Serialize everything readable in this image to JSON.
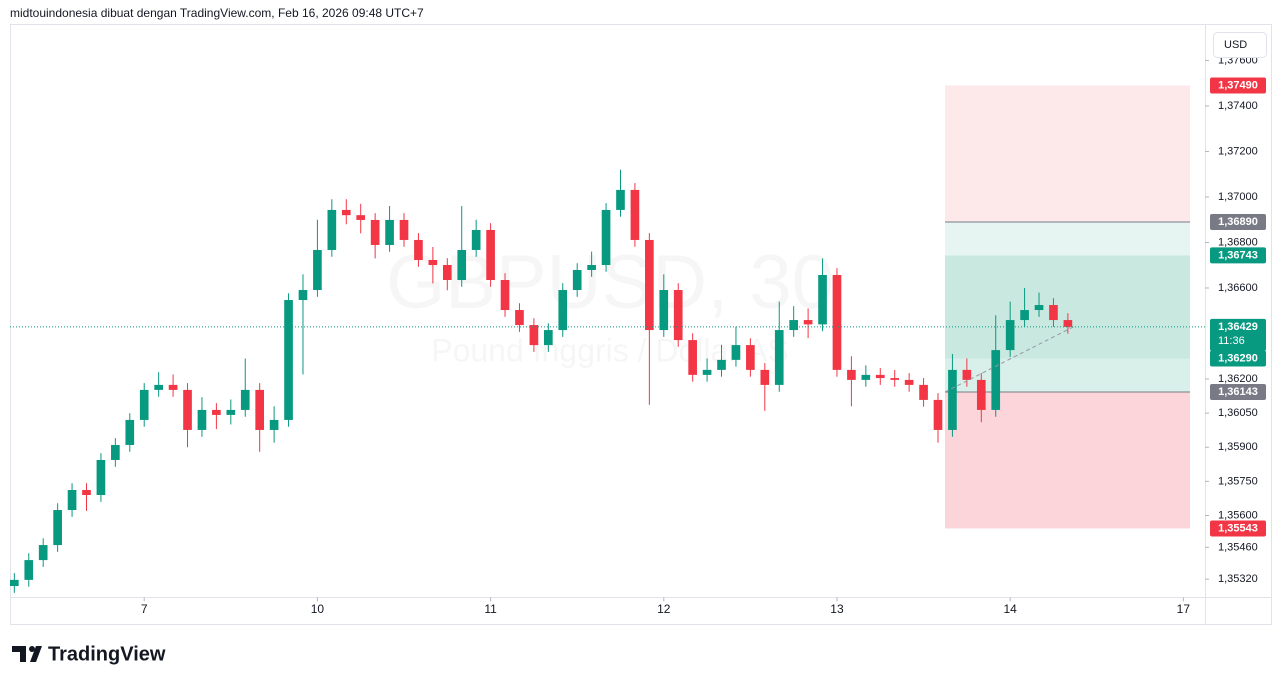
{
  "header": {
    "attribution": "midtouindonesia dibuat dengan TradingView.com, Feb 16, 2026 09:48 UTC+7"
  },
  "footer": {
    "logo": "TradingView"
  },
  "chart_data": {
    "type": "candlestick",
    "title": "GBPUSD, 30",
    "subtitle": "Pound Inggris / Dollar AS",
    "currency": "USD",
    "countdown": "11:36",
    "up_color": "#089981",
    "down_color": "#f23645",
    "grid": false,
    "open": [
      1.3529,
      1.35317,
      1.35404,
      1.3547,
      1.35624,
      1.35712,
      1.3569,
      1.35844,
      1.3591,
      1.3602,
      1.36152,
      1.36174,
      1.36152,
      1.35976,
      1.36064,
      1.36042,
      1.36064,
      1.36152,
      1.35976,
      1.3602,
      1.36547,
      1.36591,
      1.36767,
      1.36943,
      1.3692,
      1.36899,
      1.36789,
      1.36899,
      1.36811,
      1.36723,
      1.36701,
      1.36635,
      1.36767,
      1.36855,
      1.36635,
      1.36503,
      1.36437,
      1.36349,
      1.36415,
      1.36591,
      1.36679,
      1.36701,
      1.36943,
      1.37031,
      1.36811,
      1.36415,
      1.36591,
      1.36371,
      1.36218,
      1.3624,
      1.36284,
      1.36349,
      1.3624,
      1.36174,
      1.36415,
      1.36459,
      1.3644,
      1.36657,
      1.3624,
      1.36196,
      1.36218,
      1.36204,
      1.36196,
      1.36174,
      1.36108,
      1.35976,
      1.3624,
      1.36196,
      1.36064,
      1.36327,
      1.36459,
      1.36503,
      1.36525,
      1.36459
    ],
    "high": [
      1.35347,
      1.35434,
      1.355,
      1.35654,
      1.35742,
      1.35742,
      1.35874,
      1.3594,
      1.3605,
      1.36182,
      1.3623,
      1.3622,
      1.36182,
      1.3612,
      1.36094,
      1.3611,
      1.3629,
      1.36182,
      1.3608,
      1.36577,
      1.3666,
      1.369,
      1.3699,
      1.3699,
      1.3697,
      1.36929,
      1.3696,
      1.36929,
      1.36841,
      1.3678,
      1.36731,
      1.3696,
      1.369,
      1.36885,
      1.36665,
      1.36533,
      1.36467,
      1.36445,
      1.36621,
      1.36709,
      1.3676,
      1.36973,
      1.3712,
      1.37061,
      1.36841,
      1.3666,
      1.36621,
      1.36401,
      1.3629,
      1.3635,
      1.3643,
      1.36379,
      1.3627,
      1.3654,
      1.3652,
      1.3651,
      1.3673,
      1.36687,
      1.363,
      1.3626,
      1.36248,
      1.3624,
      1.36226,
      1.36204,
      1.36138,
      1.3631,
      1.3629,
      1.36226,
      1.3648,
      1.3654,
      1.366,
      1.3658,
      1.36555,
      1.36489
    ],
    "low": [
      1.3526,
      1.35287,
      1.35374,
      1.3544,
      1.35594,
      1.3562,
      1.3566,
      1.35814,
      1.3588,
      1.3599,
      1.36122,
      1.36122,
      1.359,
      1.35946,
      1.3598,
      1.36,
      1.36034,
      1.3588,
      1.3592,
      1.3599,
      1.3622,
      1.36561,
      1.36737,
      1.3688,
      1.3684,
      1.3673,
      1.36759,
      1.36781,
      1.36693,
      1.3662,
      1.3659,
      1.36605,
      1.36737,
      1.36605,
      1.36473,
      1.36407,
      1.36319,
      1.36319,
      1.36385,
      1.36561,
      1.36649,
      1.36671,
      1.36913,
      1.36781,
      1.36086,
      1.36385,
      1.36341,
      1.36188,
      1.36188,
      1.3621,
      1.36254,
      1.3621,
      1.3606,
      1.36144,
      1.36385,
      1.3638,
      1.3641,
      1.3621,
      1.3608,
      1.36166,
      1.36174,
      1.36166,
      1.36144,
      1.36078,
      1.3592,
      1.35946,
      1.36166,
      1.3601,
      1.36034,
      1.36297,
      1.36429,
      1.36473,
      1.36429,
      1.36399
    ],
    "close": [
      1.35317,
      1.35404,
      1.3547,
      1.35624,
      1.35712,
      1.3569,
      1.35844,
      1.3591,
      1.3602,
      1.36152,
      1.36174,
      1.36152,
      1.35976,
      1.36064,
      1.36042,
      1.36064,
      1.36152,
      1.35976,
      1.3602,
      1.36547,
      1.36591,
      1.36767,
      1.36943,
      1.3692,
      1.36899,
      1.36789,
      1.36899,
      1.36811,
      1.36723,
      1.36701,
      1.36635,
      1.36767,
      1.36855,
      1.36635,
      1.36503,
      1.36437,
      1.36349,
      1.36415,
      1.36591,
      1.36679,
      1.36701,
      1.36943,
      1.37031,
      1.36811,
      1.36415,
      1.36591,
      1.36371,
      1.36218,
      1.3624,
      1.36284,
      1.36349,
      1.3624,
      1.36174,
      1.36415,
      1.36459,
      1.3644,
      1.36657,
      1.3624,
      1.36196,
      1.36218,
      1.36204,
      1.36196,
      1.36174,
      1.36108,
      1.35976,
      1.3624,
      1.36196,
      1.36064,
      1.36327,
      1.36459,
      1.36503,
      1.36525,
      1.36459,
      1.36429
    ],
    "xlim": [
      -0.3,
      82.5
    ],
    "xticks": [
      {
        "value": 9,
        "label": "7"
      },
      {
        "value": 21,
        "label": "10"
      },
      {
        "value": 33,
        "label": "11"
      },
      {
        "value": 45,
        "label": "12"
      },
      {
        "value": 57,
        "label": "13"
      },
      {
        "value": 69,
        "label": "14"
      },
      {
        "value": 81,
        "label": "17"
      }
    ],
    "ylim": [
      1.3524,
      1.3774
    ],
    "yticks": [
      {
        "value": 1.376,
        "label": "1,37600"
      },
      {
        "value": 1.374,
        "label": "1,37400"
      },
      {
        "value": 1.372,
        "label": "1,37200"
      },
      {
        "value": 1.37,
        "label": "1,37000"
      },
      {
        "value": 1.368,
        "label": "1,36800"
      },
      {
        "value": 1.366,
        "label": "1,36600"
      },
      {
        "value": 1.362,
        "label": "1,36200"
      },
      {
        "value": 1.3605,
        "label": "1,36050"
      },
      {
        "value": 1.359,
        "label": "1,35900"
      },
      {
        "value": 1.3575,
        "label": "1,35750"
      },
      {
        "value": 1.356,
        "label": "1,35600"
      },
      {
        "value": 1.3546,
        "label": "1,35460"
      },
      {
        "value": 1.3532,
        "label": "1,35320"
      }
    ],
    "price_labels": [
      {
        "value": 1.3749,
        "label": "1,37490",
        "color": "#f23645"
      },
      {
        "value": 1.3689,
        "label": "1,36890",
        "color": "#787b86"
      },
      {
        "value": 1.36743,
        "label": "1,36743",
        "color": "#089981"
      },
      {
        "value": 1.36429,
        "label": "1,36429",
        "color": "#089981"
      },
      {
        "value": 1.3629,
        "label": "1,36290",
        "color": "#089981"
      },
      {
        "value": 1.36143,
        "label": "1,36143",
        "color": "#787b86"
      },
      {
        "value": 1.35543,
        "label": "1,35543",
        "color": "#f23645"
      }
    ]
  }
}
